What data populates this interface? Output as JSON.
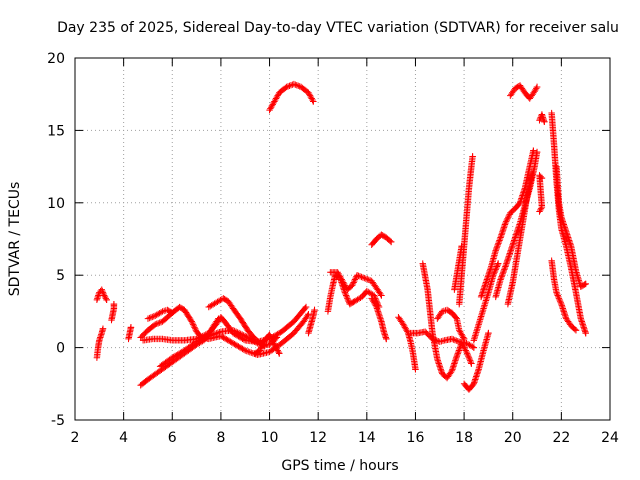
{
  "chart_data": {
    "type": "scatter",
    "title": "Day 235 of 2025, Sidereal Day-to-day VTEC variation (SDTVAR) for receiver salu",
    "xlabel": "GPS time / hours",
    "ylabel": "SDTVAR / TECUs",
    "xlim": [
      2,
      24
    ],
    "ylim": [
      -5,
      20
    ],
    "xticks": [
      2,
      4,
      6,
      8,
      10,
      12,
      14,
      16,
      18,
      20,
      22,
      24
    ],
    "yticks": [
      -5,
      0,
      5,
      10,
      15,
      20
    ],
    "grid": true,
    "marker": "+",
    "color": "#ff0000",
    "series": [
      {
        "name": "s01",
        "points": [
          [
            2.9,
            -0.7
          ],
          [
            2.95,
            0
          ],
          [
            3.0,
            0.5
          ],
          [
            3.1,
            1.0
          ],
          [
            3.15,
            1.3
          ]
        ]
      },
      {
        "name": "s02",
        "points": [
          [
            2.9,
            3.3
          ],
          [
            3.0,
            3.8
          ],
          [
            3.1,
            4.0
          ],
          [
            3.2,
            3.6
          ],
          [
            3.3,
            3.3
          ]
        ]
      },
      {
        "name": "s03",
        "points": [
          [
            3.5,
            1.9
          ],
          [
            3.55,
            2.3
          ],
          [
            3.6,
            2.7
          ],
          [
            3.6,
            3.0
          ]
        ]
      },
      {
        "name": "s04",
        "points": [
          [
            4.2,
            0.6
          ],
          [
            4.25,
            1.0
          ],
          [
            4.3,
            1.4
          ]
        ]
      },
      {
        "name": "s05",
        "points": [
          [
            4.7,
            -2.6
          ],
          [
            5.0,
            -2.2
          ],
          [
            5.5,
            -1.6
          ],
          [
            6.0,
            -1.0
          ],
          [
            6.5,
            -0.4
          ],
          [
            7.0,
            0.2
          ],
          [
            7.3,
            0.5
          ],
          [
            7.5,
            0.9
          ],
          [
            7.7,
            1.5
          ],
          [
            7.9,
            2.0
          ]
        ]
      },
      {
        "name": "s06",
        "points": [
          [
            4.7,
            0.7
          ],
          [
            5.0,
            1.2
          ],
          [
            5.3,
            1.6
          ],
          [
            5.6,
            1.8
          ],
          [
            5.8,
            2.1
          ],
          [
            6.0,
            2.4
          ],
          [
            6.3,
            2.8
          ],
          [
            6.5,
            2.6
          ],
          [
            6.8,
            1.8
          ],
          [
            7.0,
            1.1
          ],
          [
            7.2,
            0.7
          ],
          [
            7.5,
            0.6
          ],
          [
            8.0,
            0.8
          ],
          [
            8.5,
            0.3
          ],
          [
            9.0,
            -0.2
          ],
          [
            9.5,
            -0.5
          ],
          [
            10.0,
            -0.3
          ],
          [
            10.5,
            0.3
          ],
          [
            11.0,
            1.0
          ],
          [
            11.4,
            1.8
          ],
          [
            11.6,
            2.3
          ]
        ]
      },
      {
        "name": "s07",
        "points": [
          [
            4.8,
            0.5
          ],
          [
            5.2,
            0.6
          ],
          [
            5.6,
            0.6
          ],
          [
            6.0,
            0.5
          ],
          [
            6.5,
            0.5
          ],
          [
            7.0,
            0.6
          ],
          [
            7.5,
            1.0
          ],
          [
            7.8,
            1.6
          ],
          [
            8.0,
            2.1
          ],
          [
            8.2,
            1.7
          ],
          [
            8.5,
            1.0
          ],
          [
            9.0,
            0.5
          ],
          [
            9.5,
            0.4
          ],
          [
            10.0,
            0.6
          ],
          [
            10.5,
            1.1
          ],
          [
            11.0,
            1.8
          ],
          [
            11.3,
            2.4
          ],
          [
            11.5,
            2.8
          ]
        ]
      },
      {
        "name": "s08",
        "points": [
          [
            5.0,
            2.0
          ],
          [
            5.3,
            2.2
          ],
          [
            5.6,
            2.5
          ],
          [
            5.8,
            2.6
          ],
          [
            6.0,
            2.4
          ]
        ]
      },
      {
        "name": "s09",
        "points": [
          [
            5.5,
            -1.3
          ],
          [
            6.0,
            -0.7
          ],
          [
            6.5,
            -0.2
          ],
          [
            7.0,
            0.4
          ],
          [
            7.5,
            0.8
          ],
          [
            8.0,
            1.1
          ],
          [
            8.5,
            1.2
          ],
          [
            9.0,
            0.8
          ],
          [
            9.5,
            0.3
          ],
          [
            9.8,
            0.1
          ]
        ]
      },
      {
        "name": "s10",
        "points": [
          [
            7.5,
            2.8
          ],
          [
            7.8,
            3.1
          ],
          [
            8.1,
            3.4
          ],
          [
            8.3,
            3.2
          ],
          [
            8.5,
            2.7
          ],
          [
            8.8,
            2.0
          ],
          [
            9.1,
            1.2
          ],
          [
            9.4,
            0.6
          ],
          [
            9.7,
            0.2
          ],
          [
            10.0,
            0.2
          ],
          [
            10.3,
            0.7
          ]
        ]
      },
      {
        "name": "s11",
        "points": [
          [
            9.4,
            -0.4
          ],
          [
            9.6,
            -0.2
          ],
          [
            9.8,
            0.5
          ],
          [
            10.0,
            0.9
          ],
          [
            10.2,
            0.2
          ],
          [
            10.4,
            -0.4
          ]
        ]
      },
      {
        "name": "s12",
        "points": [
          [
            10.0,
            16.4
          ],
          [
            10.2,
            17.0
          ],
          [
            10.4,
            17.6
          ],
          [
            10.7,
            18.0
          ],
          [
            11.0,
            18.2
          ],
          [
            11.3,
            18.0
          ],
          [
            11.6,
            17.6
          ],
          [
            11.8,
            17.0
          ]
        ]
      },
      {
        "name": "s13",
        "points": [
          [
            11.6,
            1.0
          ],
          [
            11.7,
            1.6
          ],
          [
            11.8,
            2.2
          ],
          [
            11.85,
            2.6
          ]
        ]
      },
      {
        "name": "s14",
        "points": [
          [
            12.4,
            2.5
          ],
          [
            12.5,
            3.5
          ],
          [
            12.6,
            4.3
          ],
          [
            12.7,
            5.0
          ],
          [
            12.9,
            4.8
          ],
          [
            13.1,
            3.8
          ],
          [
            13.3,
            3.0
          ],
          [
            13.5,
            3.2
          ],
          [
            13.8,
            3.5
          ],
          [
            14.0,
            3.9
          ],
          [
            14.3,
            3.6
          ],
          [
            14.5,
            2.8
          ]
        ]
      },
      {
        "name": "s15",
        "points": [
          [
            12.5,
            5.2
          ],
          [
            12.8,
            5.2
          ],
          [
            13.0,
            4.6
          ],
          [
            13.2,
            4.0
          ],
          [
            13.4,
            4.3
          ],
          [
            13.6,
            5.0
          ],
          [
            13.9,
            4.8
          ],
          [
            14.2,
            4.6
          ],
          [
            14.4,
            4.1
          ],
          [
            14.6,
            3.6
          ]
        ]
      },
      {
        "name": "s16",
        "points": [
          [
            14.2,
            3.4
          ],
          [
            14.4,
            2.8
          ],
          [
            14.6,
            1.8
          ],
          [
            14.7,
            1.1
          ],
          [
            14.8,
            0.6
          ]
        ]
      },
      {
        "name": "s17",
        "points": [
          [
            14.2,
            7.1
          ],
          [
            14.4,
            7.5
          ],
          [
            14.6,
            7.8
          ],
          [
            14.8,
            7.6
          ],
          [
            15.0,
            7.3
          ]
        ]
      },
      {
        "name": "s18",
        "points": [
          [
            15.3,
            2.1
          ],
          [
            15.5,
            1.6
          ],
          [
            15.7,
            1.0
          ],
          [
            15.8,
            0.4
          ],
          [
            15.9,
            -0.4
          ],
          [
            16.0,
            -1.5
          ]
        ]
      },
      {
        "name": "s19",
        "points": [
          [
            15.8,
            1.0
          ],
          [
            16.1,
            1.0
          ],
          [
            16.4,
            1.1
          ],
          [
            16.7,
            0.6
          ],
          [
            17.0,
            0.4
          ],
          [
            17.2,
            0.5
          ],
          [
            17.5,
            0.6
          ],
          [
            17.8,
            0.4
          ],
          [
            18.1,
            0.3
          ],
          [
            18.4,
            0.0
          ]
        ]
      },
      {
        "name": "s20",
        "points": [
          [
            16.3,
            5.8
          ],
          [
            16.5,
            4.0
          ],
          [
            16.6,
            2.5
          ],
          [
            16.7,
            1.0
          ],
          [
            16.9,
            -0.8
          ],
          [
            17.1,
            -1.8
          ],
          [
            17.3,
            -2.1
          ],
          [
            17.5,
            -1.6
          ],
          [
            17.7,
            -0.6
          ],
          [
            17.9,
            0.3
          ],
          [
            18.1,
            -0.3
          ],
          [
            18.3,
            -1.1
          ]
        ]
      },
      {
        "name": "s21",
        "points": [
          [
            16.9,
            2.0
          ],
          [
            17.1,
            2.5
          ],
          [
            17.3,
            2.6
          ],
          [
            17.5,
            2.4
          ],
          [
            17.7,
            2.0
          ],
          [
            17.8,
            1.2
          ],
          [
            18.0,
            0.6
          ]
        ]
      },
      {
        "name": "s22",
        "points": [
          [
            17.8,
            3.0
          ],
          [
            17.9,
            5.0
          ],
          [
            18.0,
            7.0
          ],
          [
            18.1,
            9.0
          ],
          [
            18.2,
            11.0
          ],
          [
            18.3,
            12.5
          ],
          [
            18.35,
            13.2
          ]
        ]
      },
      {
        "name": "s23",
        "points": [
          [
            17.6,
            4.0
          ],
          [
            17.8,
            6.0
          ],
          [
            17.9,
            7.0
          ]
        ]
      },
      {
        "name": "s24",
        "points": [
          [
            18.0,
            -2.5
          ],
          [
            18.2,
            -2.9
          ],
          [
            18.4,
            -2.5
          ],
          [
            18.6,
            -1.5
          ],
          [
            18.8,
            -0.2
          ],
          [
            19.0,
            1.0
          ]
        ]
      },
      {
        "name": "s25",
        "points": [
          [
            18.4,
            0.5
          ],
          [
            18.6,
            1.6
          ],
          [
            18.8,
            2.7
          ],
          [
            19.0,
            3.8
          ],
          [
            19.2,
            5.0
          ],
          [
            19.4,
            5.8
          ]
        ]
      },
      {
        "name": "s26",
        "points": [
          [
            18.7,
            3.5
          ],
          [
            18.9,
            4.5
          ],
          [
            19.1,
            5.5
          ],
          [
            19.3,
            6.7
          ],
          [
            19.5,
            7.6
          ],
          [
            19.7,
            8.6
          ],
          [
            19.9,
            9.3
          ],
          [
            20.1,
            9.6
          ],
          [
            20.3,
            10.0
          ],
          [
            20.5,
            11.0
          ],
          [
            20.7,
            12.5
          ],
          [
            20.85,
            13.6
          ]
        ]
      },
      {
        "name": "s27",
        "points": [
          [
            19.3,
            3.5
          ],
          [
            19.5,
            4.7
          ],
          [
            19.7,
            5.6
          ],
          [
            19.9,
            6.6
          ],
          [
            20.1,
            7.6
          ],
          [
            20.3,
            8.6
          ],
          [
            20.5,
            9.8
          ],
          [
            20.7,
            11.0
          ],
          [
            20.9,
            12.5
          ],
          [
            21.0,
            13.5
          ]
        ]
      },
      {
        "name": "s28",
        "points": [
          [
            19.8,
            3.0
          ],
          [
            20.0,
            4.5
          ],
          [
            20.2,
            6.5
          ],
          [
            20.4,
            8.5
          ],
          [
            20.6,
            10.5
          ],
          [
            20.8,
            12.0
          ]
        ]
      },
      {
        "name": "s29",
        "points": [
          [
            19.9,
            17.4
          ],
          [
            20.1,
            17.9
          ],
          [
            20.3,
            18.1
          ],
          [
            20.5,
            17.6
          ],
          [
            20.7,
            17.2
          ],
          [
            20.9,
            17.7
          ],
          [
            21.0,
            18.0
          ]
        ]
      },
      {
        "name": "s30",
        "points": [
          [
            21.1,
            9.4
          ],
          [
            21.2,
            9.7
          ],
          [
            21.1,
            11.9
          ],
          [
            21.2,
            11.7
          ]
        ]
      },
      {
        "name": "s31",
        "points": [
          [
            21.1,
            15.7
          ],
          [
            21.2,
            16.1
          ],
          [
            21.3,
            15.6
          ]
        ]
      },
      {
        "name": "s32",
        "points": [
          [
            21.6,
            16.2
          ],
          [
            21.7,
            14.0
          ],
          [
            21.8,
            11.5
          ],
          [
            21.9,
            9.5
          ],
          [
            22.0,
            8.2
          ],
          [
            22.2,
            7.0
          ],
          [
            22.4,
            5.5
          ],
          [
            22.6,
            3.8
          ],
          [
            22.8,
            2.0
          ],
          [
            23.0,
            1.0
          ]
        ]
      },
      {
        "name": "s33",
        "points": [
          [
            21.8,
            12.5
          ],
          [
            21.9,
            10.0
          ],
          [
            22.0,
            9.0
          ],
          [
            22.2,
            8.0
          ],
          [
            22.4,
            7.0
          ],
          [
            22.6,
            5.3
          ],
          [
            22.8,
            4.2
          ],
          [
            23.0,
            4.4
          ]
        ]
      },
      {
        "name": "s34",
        "points": [
          [
            21.6,
            6.0
          ],
          [
            21.7,
            4.7
          ],
          [
            21.8,
            3.8
          ],
          [
            22.0,
            3.0
          ],
          [
            22.2,
            2.0
          ],
          [
            22.4,
            1.5
          ],
          [
            22.6,
            1.2
          ]
        ]
      }
    ]
  }
}
